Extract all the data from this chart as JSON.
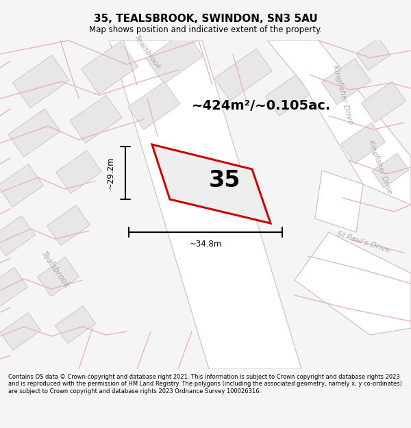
{
  "title_line1": "35, TEALSBROOK, SWINDON, SN3 5AU",
  "title_line2": "Map shows position and indicative extent of the property.",
  "area_text": "~424m²/~0.105ac.",
  "property_number": "35",
  "dim_width": "~34.8m",
  "dim_height": "~29.2m",
  "footer_text": "Contains OS data © Crown copyright and database right 2021. This information is subject to Crown copyright and database rights 2023 and is reproduced with the permission of HM Land Registry. The polygons (including the associated geometry, namely x, y co-ordinates) are subject to Crown copyright and database rights 2023 Ordnance Survey 100026316.",
  "bg_color": "#f5f5f5",
  "map_bg": "#f2f0f0",
  "road_fill": "#ffffff",
  "block_fill": "#e8e6e6",
  "block_edge": "#c8bebe",
  "road_edge": "#c8bebe",
  "property_fill": "#eeeeee",
  "property_stroke": "#cc0000",
  "street_label_color": "#aaaaaa",
  "pink_line_color": "#e8b0b0",
  "dim_color": "#000000",
  "area_text_color": "#000000",
  "property_label_color": "#000000",
  "footer_color": "#000000",
  "title_color": "#000000"
}
